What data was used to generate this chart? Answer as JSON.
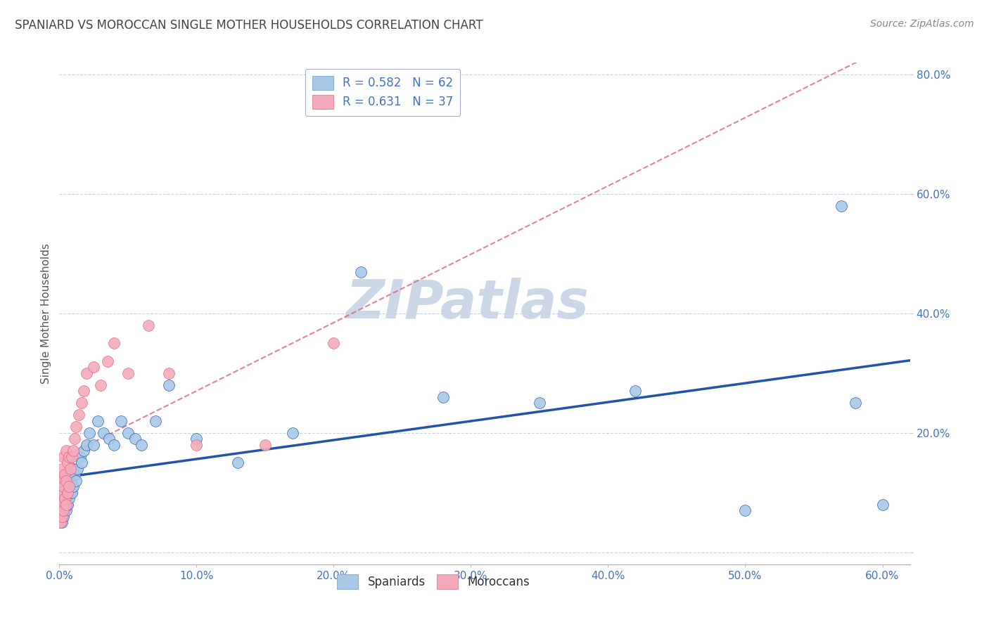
{
  "title": "SPANIARD VS MOROCCAN SINGLE MOTHER HOUSEHOLDS CORRELATION CHART",
  "source": "Source: ZipAtlas.com",
  "ylabel": "Single Mother Households",
  "legend_bottom": [
    "Spaniards",
    "Moroccans"
  ],
  "spaniards_R": "0.582",
  "spaniards_N": "62",
  "moroccans_R": "0.631",
  "moroccans_N": "37",
  "spaniard_color": "#a8c8e8",
  "moroccan_color": "#f4aabb",
  "spaniard_line_color": "#2255aa",
  "moroccan_line_color": "#e06080",
  "legend_text_color": "#4472c4",
  "title_color": "#444444",
  "watermark_color": "#ccd8e8",
  "background_color": "#ffffff",
  "axis_label_color": "#4472c4",
  "grid_color": "#c8d4e0",
  "spaniards_x": [
    0.001,
    0.001,
    0.001,
    0.001,
    0.002,
    0.002,
    0.002,
    0.002,
    0.002,
    0.003,
    0.003,
    0.003,
    0.003,
    0.004,
    0.004,
    0.004,
    0.004,
    0.005,
    0.005,
    0.005,
    0.005,
    0.006,
    0.006,
    0.006,
    0.007,
    0.007,
    0.008,
    0.008,
    0.009,
    0.009,
    0.01,
    0.01,
    0.011,
    0.012,
    0.013,
    0.015,
    0.016,
    0.018,
    0.02,
    0.022,
    0.025,
    0.028,
    0.032,
    0.036,
    0.04,
    0.045,
    0.05,
    0.055,
    0.06,
    0.07,
    0.08,
    0.1,
    0.13,
    0.17,
    0.22,
    0.28,
    0.35,
    0.42,
    0.5,
    0.57,
    0.58,
    0.6
  ],
  "spaniards_y": [
    0.05,
    0.06,
    0.07,
    0.08,
    0.05,
    0.06,
    0.08,
    0.09,
    0.1,
    0.06,
    0.07,
    0.09,
    0.11,
    0.07,
    0.08,
    0.1,
    0.12,
    0.07,
    0.09,
    0.11,
    0.13,
    0.08,
    0.1,
    0.12,
    0.09,
    0.11,
    0.1,
    0.12,
    0.1,
    0.13,
    0.11,
    0.14,
    0.13,
    0.12,
    0.14,
    0.16,
    0.15,
    0.17,
    0.18,
    0.2,
    0.18,
    0.22,
    0.2,
    0.19,
    0.18,
    0.22,
    0.2,
    0.19,
    0.18,
    0.22,
    0.28,
    0.19,
    0.15,
    0.2,
    0.47,
    0.26,
    0.25,
    0.27,
    0.07,
    0.58,
    0.25,
    0.08
  ],
  "moroccans_x": [
    0.001,
    0.001,
    0.001,
    0.002,
    0.002,
    0.002,
    0.003,
    0.003,
    0.003,
    0.004,
    0.004,
    0.005,
    0.005,
    0.005,
    0.006,
    0.006,
    0.007,
    0.007,
    0.008,
    0.009,
    0.01,
    0.011,
    0.012,
    0.014,
    0.016,
    0.018,
    0.02,
    0.025,
    0.03,
    0.035,
    0.04,
    0.05,
    0.065,
    0.08,
    0.1,
    0.15,
    0.2
  ],
  "moroccans_y": [
    0.05,
    0.08,
    0.12,
    0.06,
    0.1,
    0.14,
    0.07,
    0.11,
    0.16,
    0.09,
    0.13,
    0.08,
    0.12,
    0.17,
    0.1,
    0.15,
    0.11,
    0.16,
    0.14,
    0.16,
    0.17,
    0.19,
    0.21,
    0.23,
    0.25,
    0.27,
    0.3,
    0.31,
    0.28,
    0.32,
    0.35,
    0.3,
    0.38,
    0.3,
    0.18,
    0.18,
    0.35
  ],
  "xlim": [
    0.0,
    0.62
  ],
  "ylim": [
    -0.02,
    0.82
  ],
  "xticks": [
    0.0,
    0.1,
    0.2,
    0.3,
    0.4,
    0.5,
    0.6
  ],
  "yticks": [
    0.0,
    0.2,
    0.4,
    0.6,
    0.8
  ],
  "xticklabels": [
    "0.0%",
    "10.0%",
    "20.0%",
    "30.0%",
    "40.0%",
    "50.0%",
    "60.0%"
  ],
  "yticklabels": [
    "",
    "20.0%",
    "40.0%",
    "60.0%",
    "80.0%"
  ]
}
